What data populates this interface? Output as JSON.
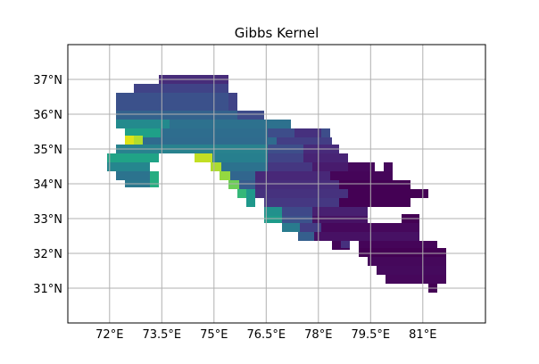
{
  "map": {
    "title": "Gibbs Kernel",
    "colormap": "viridis",
    "lon_range": [
      70.8,
      82.8
    ],
    "lat_range": [
      30.0,
      38.0
    ],
    "grid": true,
    "cell_size_deg": 0.25,
    "lon_ticks": [
      {
        "value": 72.0,
        "label": "72°E"
      },
      {
        "value": 73.5,
        "label": "73.5°E"
      },
      {
        "value": 75.0,
        "label": "75°E"
      },
      {
        "value": 76.5,
        "label": "76.5°E"
      },
      {
        "value": 78.0,
        "label": "78°E"
      },
      {
        "value": 79.5,
        "label": "79.5°E"
      },
      {
        "value": 81.0,
        "label": "81°E"
      }
    ],
    "lat_ticks": [
      {
        "value": 31.0,
        "label": "31°N"
      },
      {
        "value": 32.0,
        "label": "32°N"
      },
      {
        "value": 33.0,
        "label": "33°N"
      },
      {
        "value": 34.0,
        "label": "34°N"
      },
      {
        "value": 35.0,
        "label": "35°N"
      },
      {
        "value": 36.0,
        "label": "36°N"
      },
      {
        "value": 37.0,
        "label": "37°N"
      }
    ]
  },
  "chart_data": {
    "type": "heatmap",
    "title": "Gibbs Kernel",
    "xlabel": "",
    "ylabel": "",
    "xlim": [
      70.8,
      82.8
    ],
    "ylim": [
      30.0,
      38.0
    ],
    "grid": true,
    "colormap": "viridis",
    "value_range": [
      0,
      1
    ],
    "regions": [
      {
        "lon": [
          73.5,
          75.5
        ],
        "lat": [
          37.0,
          37.25
        ],
        "value": 0.18
      },
      {
        "lon": [
          72.8,
          75.75
        ],
        "lat": [
          36.5,
          37.0
        ],
        "value": 0.24
      },
      {
        "lon": [
          72.2,
          75.75
        ],
        "lat": [
          36.0,
          36.5
        ],
        "value": 0.3
      },
      {
        "lon": [
          75.75,
          76.75
        ],
        "lat": [
          35.75,
          36.0
        ],
        "value": 0.26
      },
      {
        "lon": [
          72.2,
          77.5
        ],
        "lat": [
          35.5,
          36.0
        ],
        "value": 0.38
      },
      {
        "lon": [
          72.2,
          74.5
        ],
        "lat": [
          35.5,
          35.75
        ],
        "value": 0.45
      },
      {
        "lon": [
          72.5,
          78.75
        ],
        "lat": [
          35.0,
          35.5
        ],
        "value": 0.42
      },
      {
        "lon": [
          76.0,
          79.0
        ],
        "lat": [
          34.75,
          35.5
        ],
        "value": 0.28
      },
      {
        "lon": [
          72.6,
          73.1
        ],
        "lat": [
          35.0,
          35.3
        ],
        "value": 0.92
      },
      {
        "lon": [
          73.2,
          75.3
        ],
        "lat": [
          34.9,
          35.2
        ],
        "value": 0.6
      },
      {
        "lon": [
          71.9,
          73.5
        ],
        "lat": [
          34.4,
          35.0
        ],
        "value": 0.52
      },
      {
        "lon": [
          72.2,
          73.5
        ],
        "lat": [
          33.9,
          34.4
        ],
        "value": 0.46
      },
      {
        "lon": [
          73.0,
          73.5
        ],
        "lat": [
          33.9,
          34.4
        ],
        "value": 0.7
      },
      {
        "lon": [
          74.6,
          75.0
        ],
        "lat": [
          34.6,
          34.9
        ],
        "value": 0.88
      },
      {
        "lon": [
          75.0,
          75.4
        ],
        "lat": [
          34.4,
          34.7
        ],
        "value": 0.83
      },
      {
        "lon": [
          75.4,
          75.8
        ],
        "lat": [
          34.1,
          34.4
        ],
        "value": 0.76
      },
      {
        "lon": [
          75.8,
          76.3
        ],
        "lat": [
          33.9,
          34.2
        ],
        "value": 0.68
      },
      {
        "lon": [
          76.3,
          76.6
        ],
        "lat": [
          33.4,
          33.9
        ],
        "value": 0.55
      },
      {
        "lon": [
          75.5,
          76.8
        ],
        "lat": [
          34.2,
          34.9
        ],
        "value": 0.4
      },
      {
        "lon": [
          76.6,
          78.0
        ],
        "lat": [
          32.9,
          34.6
        ],
        "value": 0.22
      },
      {
        "lon": [
          76.6,
          78.1
        ],
        "lat": [
          32.6,
          32.9
        ],
        "value": 0.35
      },
      {
        "lon": [
          77.5,
          78.1
        ],
        "lat": [
          32.4,
          32.6
        ],
        "value": 0.28
      },
      {
        "lon": [
          78.0,
          79.3
        ],
        "lat": [
          33.0,
          34.9
        ],
        "value": 0.1
      },
      {
        "lon": [
          79.3,
          80.3
        ],
        "lat": [
          33.3,
          34.6
        ],
        "value": 0.06
      },
      {
        "lon": [
          80.3,
          81.4
        ],
        "lat": [
          33.5,
          34.4
        ],
        "value": 0.03
      },
      {
        "lon": [
          78.6,
          80.6
        ],
        "lat": [
          32.4,
          33.0
        ],
        "value": 0.08
      },
      {
        "lon": [
          80.6,
          81.8
        ],
        "lat": [
          31.2,
          33.0
        ],
        "value": 0.03
      },
      {
        "lon": [
          79.5,
          81.8
        ],
        "lat": [
          31.9,
          32.9
        ],
        "value": 0.04
      },
      {
        "lon": [
          80.0,
          81.8
        ],
        "lat": [
          31.4,
          31.9
        ],
        "value": 0.06
      }
    ]
  }
}
